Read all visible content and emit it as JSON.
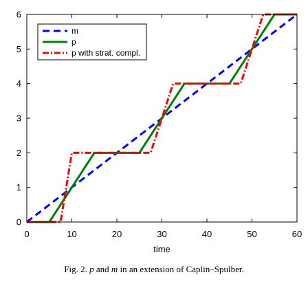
{
  "caption": {
    "prefix": "Fig. 2.",
    "var_p": "p",
    "and_word": "and",
    "var_m": "m",
    "suffix": "in an extension of Caplin–Spulber."
  },
  "chart_data": {
    "type": "line",
    "title": "",
    "xlabel": "time",
    "ylabel": "",
    "xlim": [
      0,
      60
    ],
    "ylim": [
      0,
      6
    ],
    "xticks": [
      0,
      10,
      20,
      30,
      40,
      50,
      60
    ],
    "yticks": [
      0,
      1,
      2,
      3,
      4,
      5,
      6
    ],
    "grid": false,
    "legend_position": "top-left",
    "series": [
      {
        "name": "m",
        "color": "#0000ff",
        "style": "dashed",
        "x": [
          0,
          60
        ],
        "y": [
          0,
          6
        ]
      },
      {
        "name": "p",
        "color": "#008000",
        "style": "solid",
        "x": [
          0,
          5,
          15,
          25,
          35,
          45,
          55,
          60
        ],
        "y": [
          0,
          0,
          2,
          2,
          4,
          4,
          6,
          6
        ]
      },
      {
        "name": "p with strat. compl.",
        "color": "#ff0000",
        "style": "dash-dot",
        "x": [
          0,
          7.5,
          10,
          17.5,
          20,
          27.5,
          30,
          32.5,
          40,
          47.5,
          50,
          52.5,
          60
        ],
        "y": [
          0,
          0,
          2,
          2,
          2,
          2,
          3,
          4,
          4,
          4,
          5,
          6,
          6
        ]
      }
    ]
  }
}
